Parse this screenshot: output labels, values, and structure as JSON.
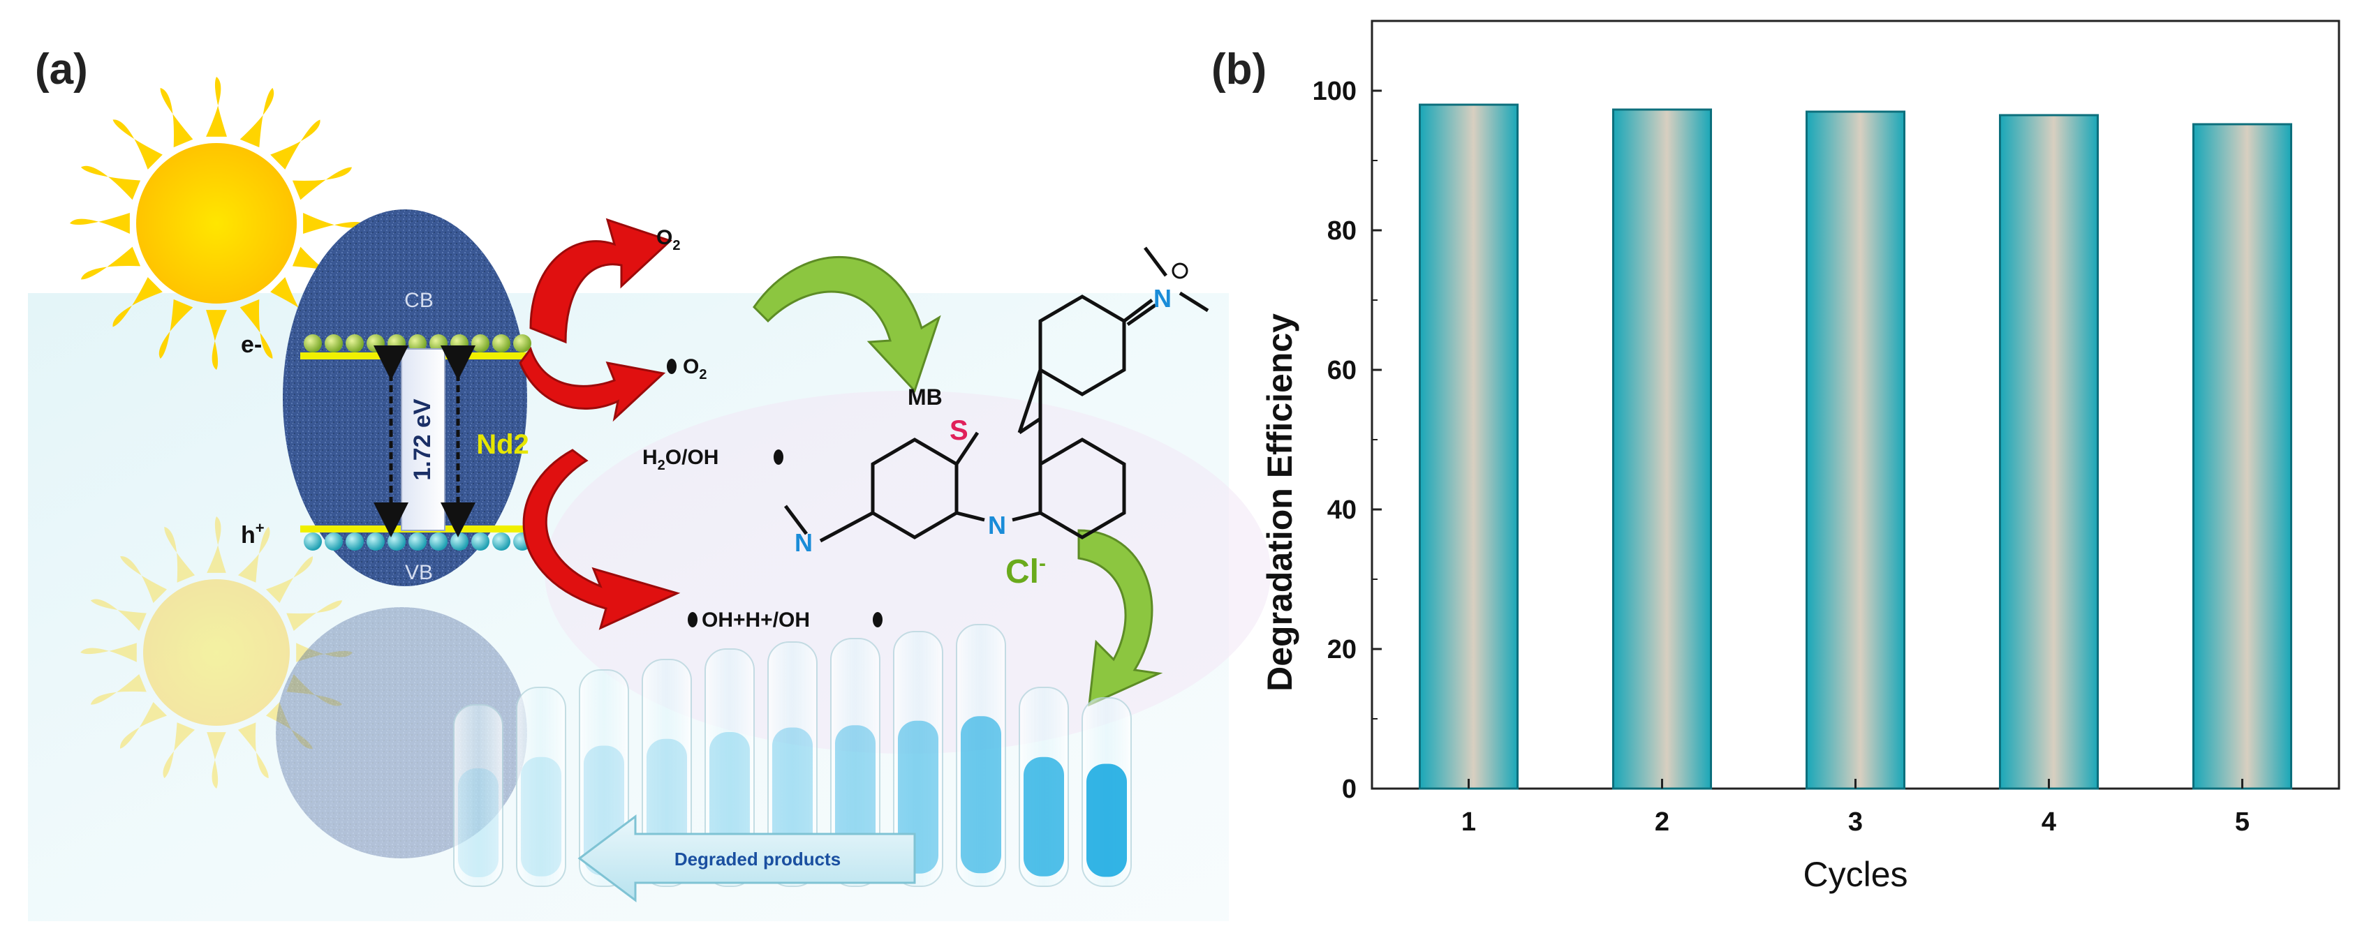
{
  "panel_a": {
    "label": "(a)",
    "band_cb": "CB",
    "band_vb": "VB",
    "electron": "e-",
    "hole": "h",
    "hole_sup": "+",
    "band_gap": "1.72 eV",
    "material": "Nd2",
    "o2": "O",
    "o2_sub": "2",
    "superoxide": "O",
    "superoxide_sub": "2",
    "water_pre": "H",
    "water_sub": "2",
    "water_post": "O/OH",
    "radicals": "OH+H+/OH",
    "dye_label": "MB",
    "sulfur": "S",
    "nitrogen": "N",
    "chloride": "Cl",
    "chloride_sup": "-",
    "products_label": "Degraded products",
    "colors": {
      "sun": "#ffd400",
      "particle": "#3c5a96",
      "band_line": "#f0f000",
      "red_arrow": "#e01010",
      "green_arrow": "#8cc640",
      "sulfur": "#e0205a",
      "nitrogen": "#1a8cd8"
    }
  },
  "panel_b": {
    "label": "(b)"
  },
  "chart_data": {
    "type": "bar",
    "categories": [
      "1",
      "2",
      "3",
      "4",
      "5"
    ],
    "values": [
      98,
      97.3,
      97,
      96.5,
      95.2
    ],
    "xlabel": "Cycles",
    "ylabel": "Degradation Efficiency",
    "ylim": [
      0,
      110
    ],
    "yticks": [
      0,
      20,
      40,
      60,
      80,
      100
    ],
    "yticks_labels": [
      "0",
      "20",
      "40",
      "60",
      "80",
      "100"
    ],
    "grid": false,
    "bar_colors": {
      "edge": "#1aa7b8",
      "center": "#d8cfc0",
      "outline": "#0c6f7c"
    }
  }
}
